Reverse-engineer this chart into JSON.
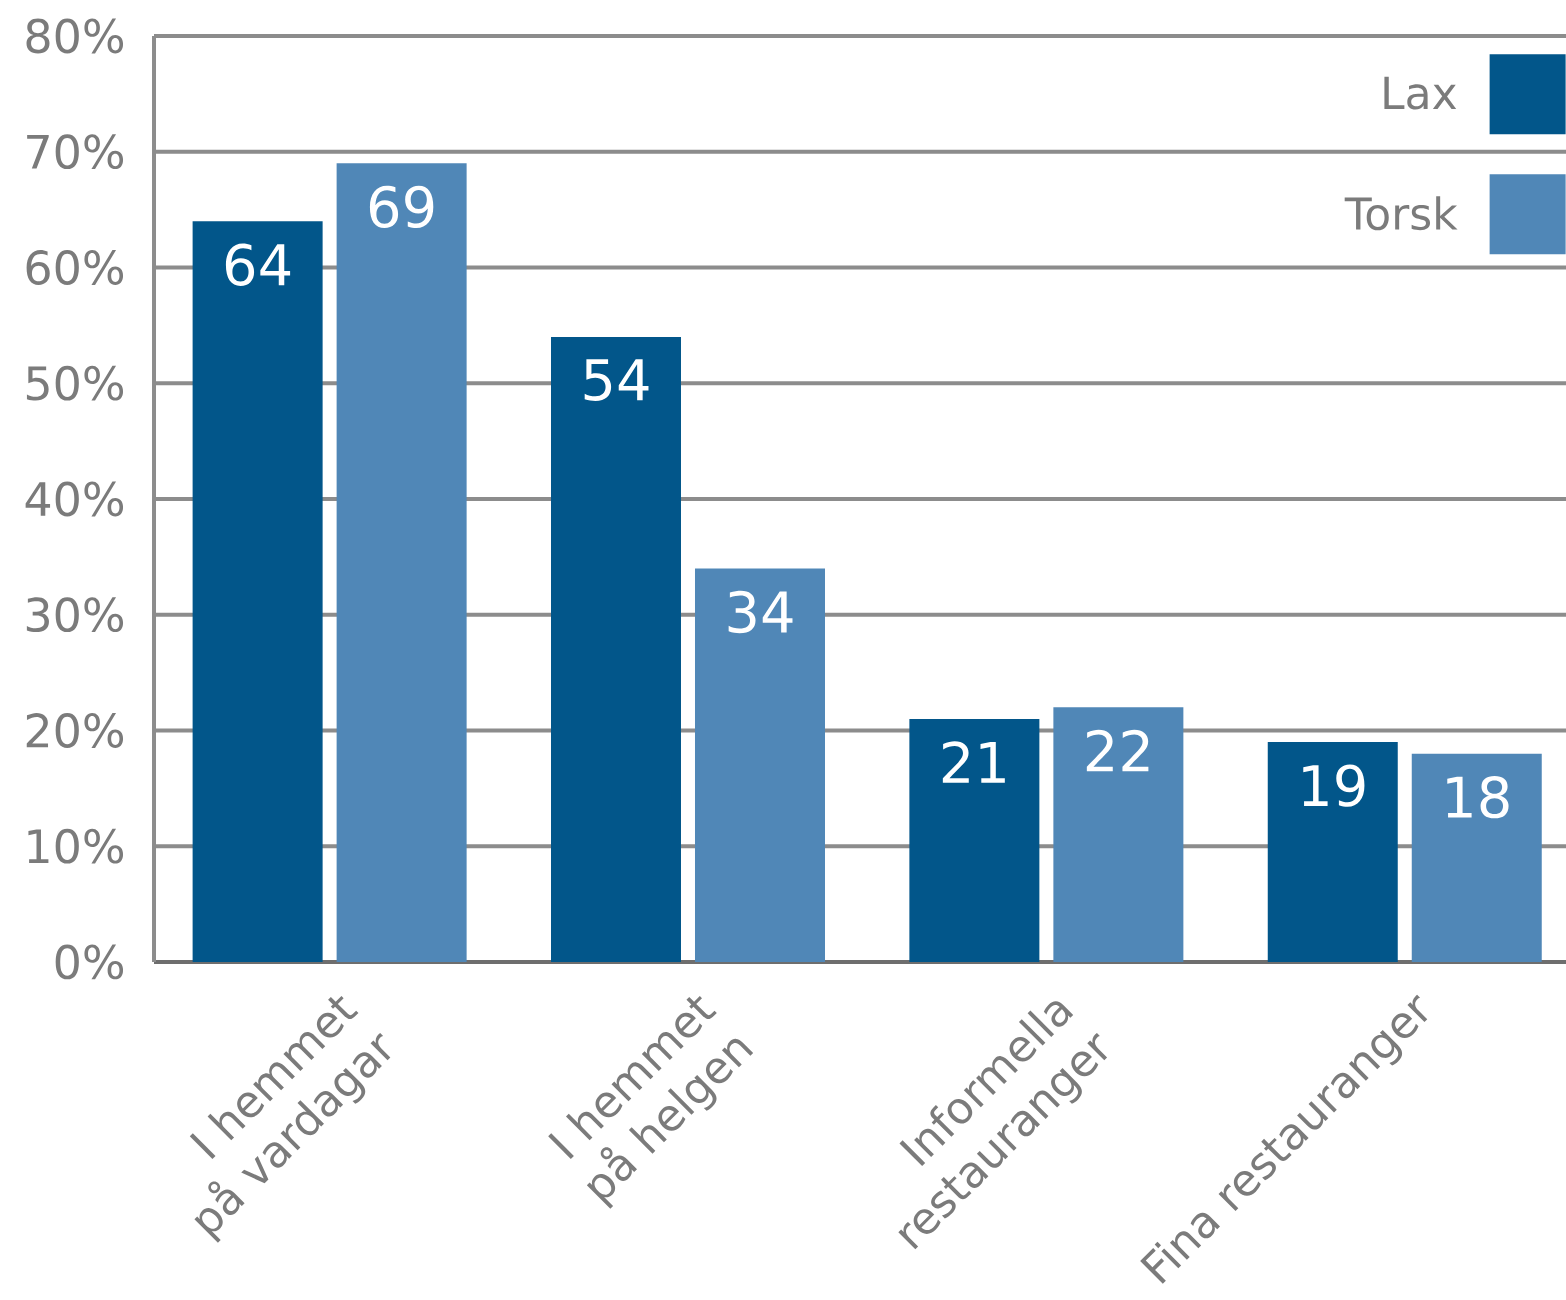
{
  "chart_data": {
    "type": "bar",
    "categories": [
      "I hemmet på vardagar",
      "I hemmet på helgen",
      "Informella restauranger",
      "Fina restauranger"
    ],
    "series": [
      {
        "name": "Lax",
        "color": "#02568a",
        "values": [
          64,
          54,
          21,
          19
        ]
      },
      {
        "name": "Torsk",
        "color": "#5087b7",
        "values": [
          69,
          34,
          22,
          18
        ]
      }
    ],
    "ylim": [
      0,
      80
    ],
    "yticks": [
      {
        "value": 0,
        "label": "0%"
      },
      {
        "value": 10,
        "label": "10%"
      },
      {
        "value": 20,
        "label": "20%"
      },
      {
        "value": 30,
        "label": "30%"
      },
      {
        "value": 40,
        "label": "40%"
      },
      {
        "value": 50,
        "label": "50%"
      },
      {
        "value": 60,
        "label": "60%"
      },
      {
        "value": 70,
        "label": "70%"
      },
      {
        "value": 80,
        "label": "80%"
      }
    ],
    "grid": "y",
    "legend": "top right",
    "data_labels": true
  }
}
